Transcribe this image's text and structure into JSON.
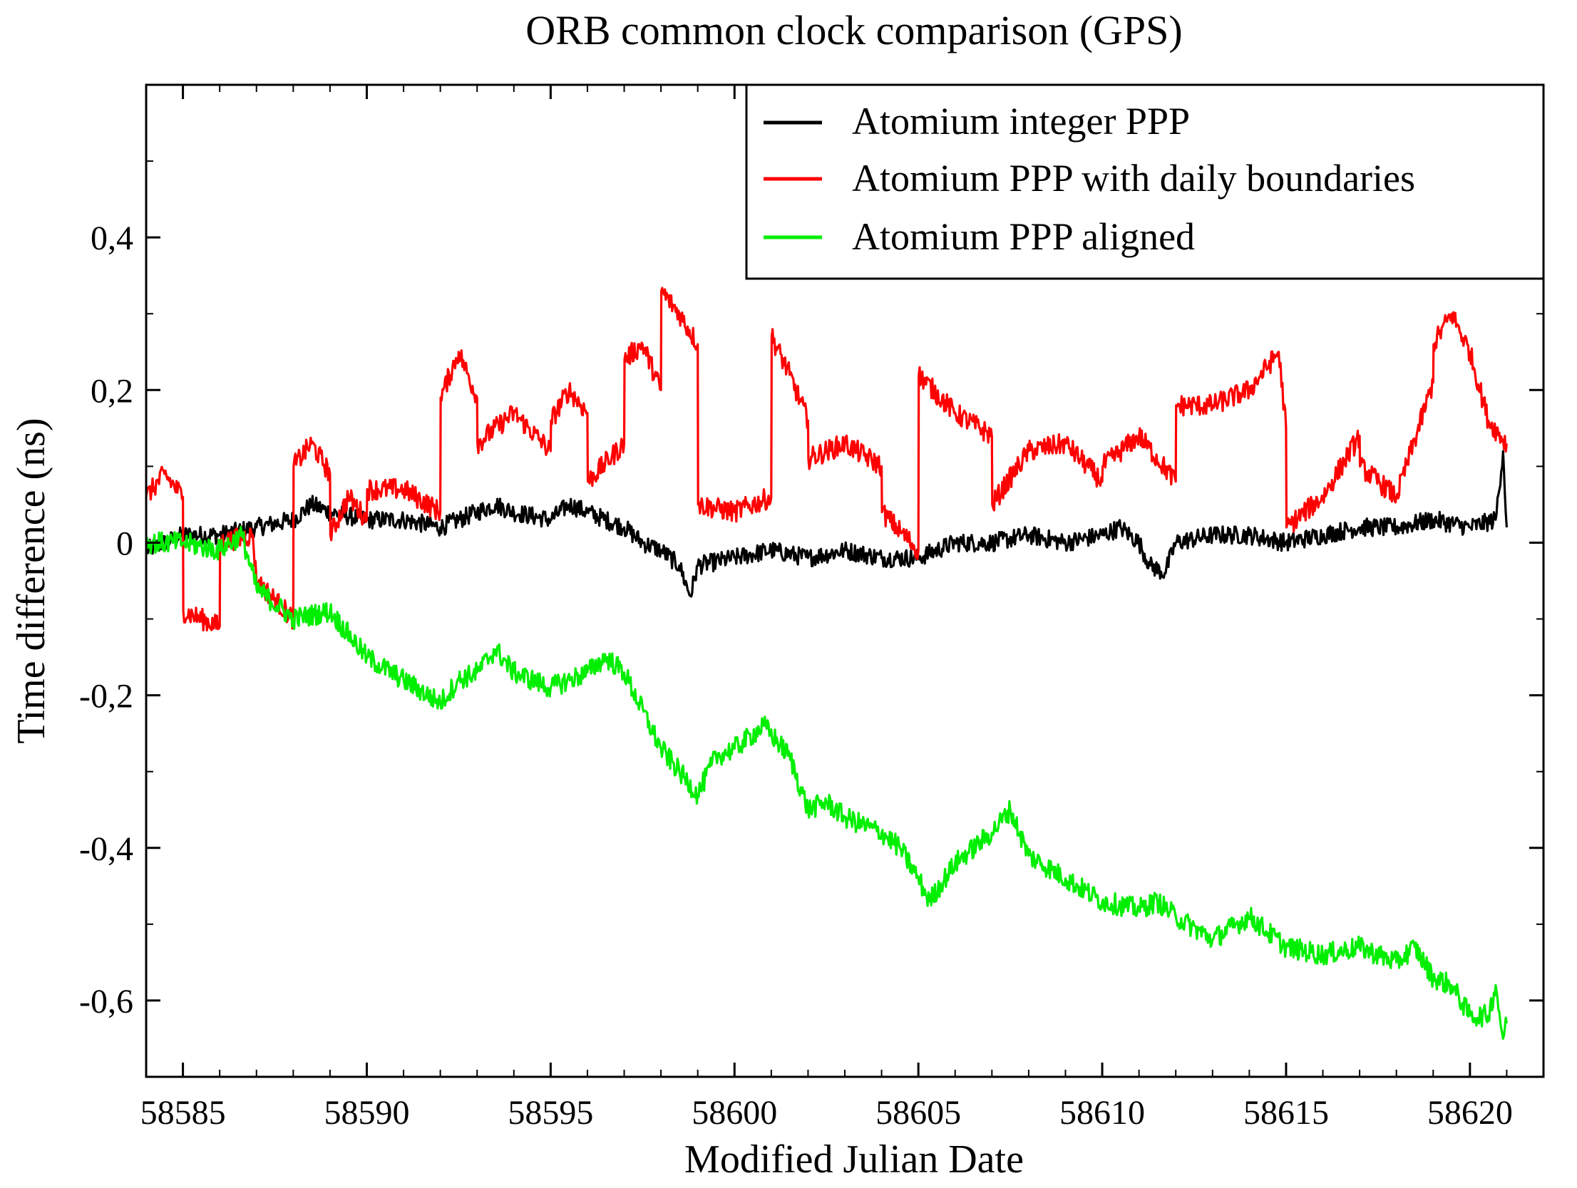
{
  "colors": {
    "background": "#ffffff",
    "axes": "#000000",
    "series_integer": "#000000",
    "series_daily": "#ff0000",
    "series_aligned": "#00ee00"
  },
  "chart_data": {
    "type": "line",
    "title": "ORB common clock comparison (GPS)",
    "xlabel": "Modified Julian Date",
    "ylabel": "Time difference (ns)",
    "xlim": [
      58584,
      58622
    ],
    "ylim": [
      -0.7,
      0.6
    ],
    "x_ticks": [
      58585,
      58590,
      58595,
      58600,
      58605,
      58610,
      58615,
      58620
    ],
    "x_tick_labels": [
      "58585",
      "58590",
      "58595",
      "58600",
      "58605",
      "58610",
      "58615",
      "58620"
    ],
    "y_ticks": [
      -0.6,
      -0.4,
      -0.2,
      0,
      0.2,
      0.4
    ],
    "y_tick_labels": [
      "-0,6",
      "-0,4",
      "-0,2",
      "0",
      "0,2",
      "0,4"
    ],
    "grid": false,
    "legend_position": "top-right",
    "series": [
      {
        "name": "Atomium integer PPP",
        "color": "#000000",
        "x": [
          58584,
          58585,
          58586,
          58587,
          58588,
          58588.5,
          58589,
          58590,
          58591,
          58592,
          58593,
          58593.5,
          58594,
          58595,
          58595.5,
          58596,
          58597,
          58597.5,
          58598,
          58598.5,
          58598.8,
          58599,
          58600,
          58601,
          58602,
          58603,
          58604,
          58605,
          58606,
          58607,
          58608,
          58609,
          58610,
          58610.5,
          58611,
          58611.3,
          58611.7,
          58612,
          58613,
          58614,
          58615,
          58616,
          58617,
          58618,
          58619,
          58620,
          58620.7,
          58620.9,
          58621
        ],
        "values": [
          -0.01,
          0.01,
          0.01,
          0.02,
          0.03,
          0.05,
          0.04,
          0.03,
          0.03,
          0.02,
          0.04,
          0.05,
          0.04,
          0.03,
          0.05,
          0.04,
          0.02,
          0.0,
          -0.01,
          -0.03,
          -0.07,
          -0.03,
          -0.02,
          -0.01,
          -0.02,
          -0.01,
          -0.02,
          -0.02,
          0.0,
          0.0,
          0.01,
          0.0,
          0.01,
          0.02,
          0.0,
          -0.03,
          -0.04,
          0.0,
          0.01,
          0.01,
          0.0,
          0.01,
          0.02,
          0.02,
          0.03,
          0.02,
          0.03,
          0.12,
          0.02
        ]
      },
      {
        "name": "Atomium PPP with daily boundaries",
        "color": "#ff0000",
        "x": [
          58584,
          58584.5,
          58585,
          58585.01,
          58586,
          58586.01,
          58586.9,
          58587,
          58588,
          58588.01,
          58588.5,
          58589,
          58589.01,
          58589.5,
          58590,
          58590.01,
          58591,
          58592,
          58592.01,
          58592.5,
          58593,
          58593.01,
          58594,
          58595,
          58595.01,
          58595.5,
          58596,
          58596.01,
          58597,
          58597.01,
          58597.5,
          58598,
          58598.01,
          58598.5,
          58599,
          58599.01,
          58600,
          58601,
          58601.01,
          58601.5,
          58602,
          58602.01,
          58603,
          58604,
          58604.01,
          58605,
          58605.01,
          58606,
          58607,
          58607.01,
          58608,
          58609,
          58610,
          58610.01,
          58611,
          58612,
          58612.01,
          58613,
          58614,
          58614.8,
          58615,
          58615.01,
          58616,
          58617,
          58617.01,
          58618,
          58619,
          58619.01,
          58619.5,
          58620,
          58620.5,
          58621
        ],
        "values": [
          0.06,
          0.09,
          0.06,
          -0.09,
          -0.11,
          0.0,
          0.01,
          -0.05,
          -0.1,
          0.1,
          0.13,
          0.09,
          0.01,
          0.06,
          0.03,
          0.07,
          0.07,
          0.04,
          0.19,
          0.25,
          0.19,
          0.13,
          0.17,
          0.12,
          0.16,
          0.2,
          0.17,
          0.08,
          0.13,
          0.24,
          0.26,
          0.2,
          0.33,
          0.3,
          0.26,
          0.05,
          0.04,
          0.06,
          0.27,
          0.22,
          0.16,
          0.11,
          0.13,
          0.1,
          0.04,
          -0.01,
          0.22,
          0.17,
          0.14,
          0.05,
          0.12,
          0.13,
          0.08,
          0.1,
          0.14,
          0.08,
          0.18,
          0.18,
          0.2,
          0.25,
          0.15,
          0.02,
          0.06,
          0.14,
          0.1,
          0.06,
          0.21,
          0.26,
          0.3,
          0.25,
          0.16,
          0.13
        ]
      },
      {
        "name": "Atomium PPP aligned",
        "color": "#00ee00",
        "x": [
          58584,
          58585,
          58586,
          58586.6,
          58587,
          58588,
          58589,
          58590,
          58591,
          58592,
          58592.5,
          58593,
          58593.5,
          58594,
          58595,
          58596,
          58596.5,
          58597,
          58598,
          58598.5,
          58599,
          58599.5,
          58600,
          58600.8,
          58601.5,
          58602,
          58602.5,
          58603,
          58604,
          58604.5,
          58605,
          58605.3,
          58606,
          58607,
          58607.5,
          58608,
          58609,
          58610,
          58611,
          58611.5,
          58612,
          58613,
          58614,
          58615,
          58616,
          58617,
          58618,
          58618.5,
          58619,
          58619.5,
          58620,
          58620.5,
          58620.7,
          58620.9,
          58621
        ],
        "values": [
          0.0,
          0.0,
          -0.01,
          0.01,
          -0.06,
          -0.1,
          -0.09,
          -0.15,
          -0.18,
          -0.21,
          -0.18,
          -0.17,
          -0.14,
          -0.17,
          -0.19,
          -0.17,
          -0.15,
          -0.17,
          -0.27,
          -0.3,
          -0.33,
          -0.28,
          -0.27,
          -0.24,
          -0.28,
          -0.35,
          -0.34,
          -0.36,
          -0.38,
          -0.4,
          -0.44,
          -0.47,
          -0.42,
          -0.38,
          -0.35,
          -0.41,
          -0.44,
          -0.47,
          -0.48,
          -0.47,
          -0.49,
          -0.52,
          -0.49,
          -0.53,
          -0.54,
          -0.53,
          -0.55,
          -0.53,
          -0.57,
          -0.58,
          -0.62,
          -0.62,
          -0.58,
          -0.65,
          -0.63
        ]
      }
    ]
  }
}
